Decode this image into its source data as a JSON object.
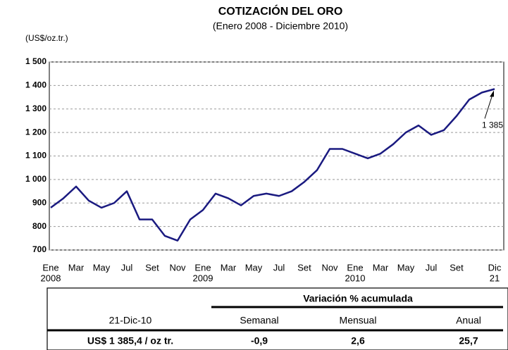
{
  "chart_data": {
    "type": "line",
    "title": "COTIZACIÓN DEL ORO",
    "subtitle": "(Enero 2008 - Diciembre 2010)",
    "y_axis_label": "(US$/oz.tr.)",
    "categories": [
      "Ene",
      null,
      "Mar",
      null,
      "May",
      null,
      "Jul",
      null,
      "Set",
      null,
      "Nov",
      null,
      "Ene",
      null,
      "Mar",
      null,
      "May",
      null,
      "Jul",
      null,
      "Set",
      null,
      "Nov",
      null,
      "Ene",
      null,
      "Mar",
      null,
      "May",
      null,
      "Jul",
      null,
      "Set",
      null,
      null,
      "Dic"
    ],
    "category_sublabels": [
      "2008",
      null,
      null,
      null,
      null,
      null,
      null,
      null,
      null,
      null,
      null,
      null,
      "2009",
      null,
      null,
      null,
      null,
      null,
      null,
      null,
      null,
      null,
      null,
      null,
      "2010",
      null,
      null,
      null,
      null,
      null,
      null,
      null,
      null,
      null,
      null,
      "21"
    ],
    "series": [
      {
        "name": "Oro",
        "color": "#1a1a80",
        "values": [
          880,
          920,
          970,
          910,
          880,
          900,
          950,
          830,
          830,
          760,
          740,
          830,
          870,
          940,
          920,
          890,
          930,
          940,
          930,
          950,
          990,
          1040,
          1130,
          1130,
          1110,
          1090,
          1110,
          1150,
          1200,
          1230,
          1190,
          1210,
          1270,
          1340,
          1370,
          1385
        ]
      }
    ],
    "ylim": [
      700,
      1500
    ],
    "yticks": [
      700,
      800,
      900,
      {
        "value": 1000,
        "label": "1 000"
      },
      {
        "value": 1100,
        "label": "1 100"
      },
      {
        "value": 1200,
        "label": "1 200"
      },
      {
        "value": 1300,
        "label": "1 300"
      },
      {
        "value": 1400,
        "label": "1 400"
      },
      {
        "value": 1500,
        "label": "1 500"
      }
    ],
    "grid": true,
    "annotation": {
      "text": "1 385",
      "value": 1385
    }
  },
  "table": {
    "group_header": "Variación % acumulada",
    "columns": [
      "21-Dic-10",
      "Semanal",
      "Mensual",
      "Anual"
    ],
    "rows": [
      [
        "US$ 1 385,4 / oz tr.",
        "-0,9",
        "2,6",
        "25,7"
      ]
    ]
  }
}
